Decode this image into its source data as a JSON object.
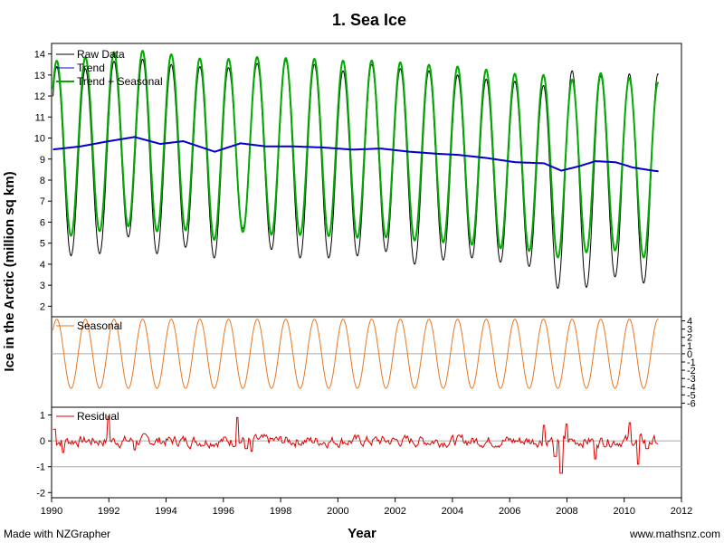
{
  "chart_data": {
    "type": "line",
    "title": "1. Sea Ice",
    "xlabel": "Year",
    "ylabel": "Ice in the Arctic (million sq km)",
    "footer_left": "Made with NZGrapher",
    "footer_right": "www.mathsnz.com",
    "x_ticks": [
      "1990",
      "1992",
      "1994",
      "1996",
      "1998",
      "2000",
      "2002",
      "2004",
      "2006",
      "2008",
      "2010",
      "2012"
    ],
    "xlim": [
      1990,
      2012
    ],
    "panels": [
      {
        "id": "main",
        "ylim": [
          1.5,
          14.5
        ],
        "y_ticks": [
          "2",
          "3",
          "4",
          "5",
          "6",
          "7",
          "8",
          "9",
          "10",
          "11",
          "12",
          "13",
          "14"
        ],
        "series": [
          {
            "name": "Raw Data",
            "color": "#000000"
          },
          {
            "name": "Trend",
            "color": "#0000cc"
          },
          {
            "name": "Trend + Seasonal",
            "color": "#00aa00"
          }
        ],
        "trend_points": [
          [
            1990,
            9.45
          ],
          [
            1991,
            9.6
          ],
          [
            1992,
            9.85
          ],
          [
            1992.9,
            10.05
          ],
          [
            1993.8,
            9.72
          ],
          [
            1994.6,
            9.85
          ],
          [
            1995.7,
            9.35
          ],
          [
            1996.6,
            9.75
          ],
          [
            1997.5,
            9.6
          ],
          [
            1998.5,
            9.6
          ],
          [
            1999.5,
            9.55
          ],
          [
            2000.5,
            9.45
          ],
          [
            2001.5,
            9.5
          ],
          [
            2002.5,
            9.35
          ],
          [
            2003.5,
            9.25
          ],
          [
            2004.2,
            9.2
          ],
          [
            2005.2,
            9.05
          ],
          [
            2006.2,
            8.85
          ],
          [
            2007.2,
            8.8
          ],
          [
            2007.8,
            8.45
          ],
          [
            2008.4,
            8.65
          ],
          [
            2009,
            8.9
          ],
          [
            2009.7,
            8.85
          ],
          [
            2010.3,
            8.6
          ],
          [
            2011,
            8.45
          ],
          [
            2011.2,
            8.42
          ]
        ],
        "seasonal_amplitude": 4.2,
        "raw_maxima": [
          13.4,
          13.3,
          13.65,
          13.75,
          13.5,
          13.4,
          13.35,
          13.55,
          13.7,
          13.5,
          13.2,
          13.5,
          13.3,
          13.2,
          13.0,
          12.8,
          12.7,
          12.5,
          13.2,
          12.95,
          13.05
        ],
        "raw_minima": [
          4.4,
          4.5,
          5.3,
          4.5,
          4.8,
          4.3,
          5.7,
          4.7,
          4.3,
          4.3,
          4.4,
          4.6,
          4.0,
          4.2,
          4.3,
          4.1,
          3.9,
          2.85,
          2.9,
          3.4,
          3.1
        ]
      },
      {
        "id": "seasonal",
        "label": "Seasonal",
        "color": "#e87722",
        "ylim": [
          -6.5,
          4.5
        ],
        "y_ticks": [
          "4",
          "3",
          "2",
          "1",
          "0",
          "-1",
          "-2",
          "-3",
          "-4",
          "-5",
          "-6"
        ],
        "amplitude": 4.2
      },
      {
        "id": "residual",
        "label": "Residual",
        "color": "#dd0000",
        "ylim": [
          -2.2,
          1.3
        ],
        "y_ticks": [
          "1",
          "0",
          "-1",
          "-2"
        ]
      }
    ]
  }
}
